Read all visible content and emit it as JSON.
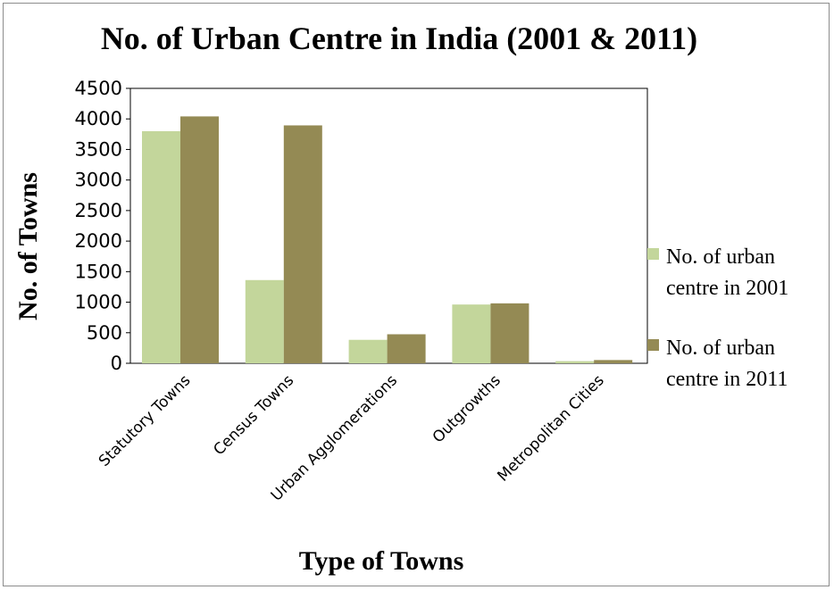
{
  "chart_data": {
    "type": "bar",
    "title": "No. of Urban Centre in India (2001 & 2011)",
    "xlabel": "Type of Towns",
    "ylabel": "No. of Towns",
    "categories": [
      "Statutory Towns",
      "Census Towns",
      "Urban Agglomerations",
      "Outgrowths",
      "Metropolitan Cities"
    ],
    "series": [
      {
        "name": "No. of urban centre in 2001",
        "name_lines": [
          "No. of urban",
          "centre in 2001"
        ],
        "color": "#c3d69b",
        "values": [
          3799,
          1362,
          384,
          962,
          35
        ]
      },
      {
        "name": "No. of urban centre in 2011",
        "name_lines": [
          "No. of urban",
          "centre in 2011"
        ],
        "color": "#948a54",
        "values": [
          4041,
          3894,
          475,
          981,
          53
        ]
      }
    ],
    "ylim": [
      0,
      4500
    ],
    "yticks": [
      "0",
      "500",
      "1000",
      "1500",
      "2000",
      "2500",
      "3000",
      "3500",
      "4000",
      "4500"
    ],
    "grid": false,
    "legend_position": "right"
  }
}
